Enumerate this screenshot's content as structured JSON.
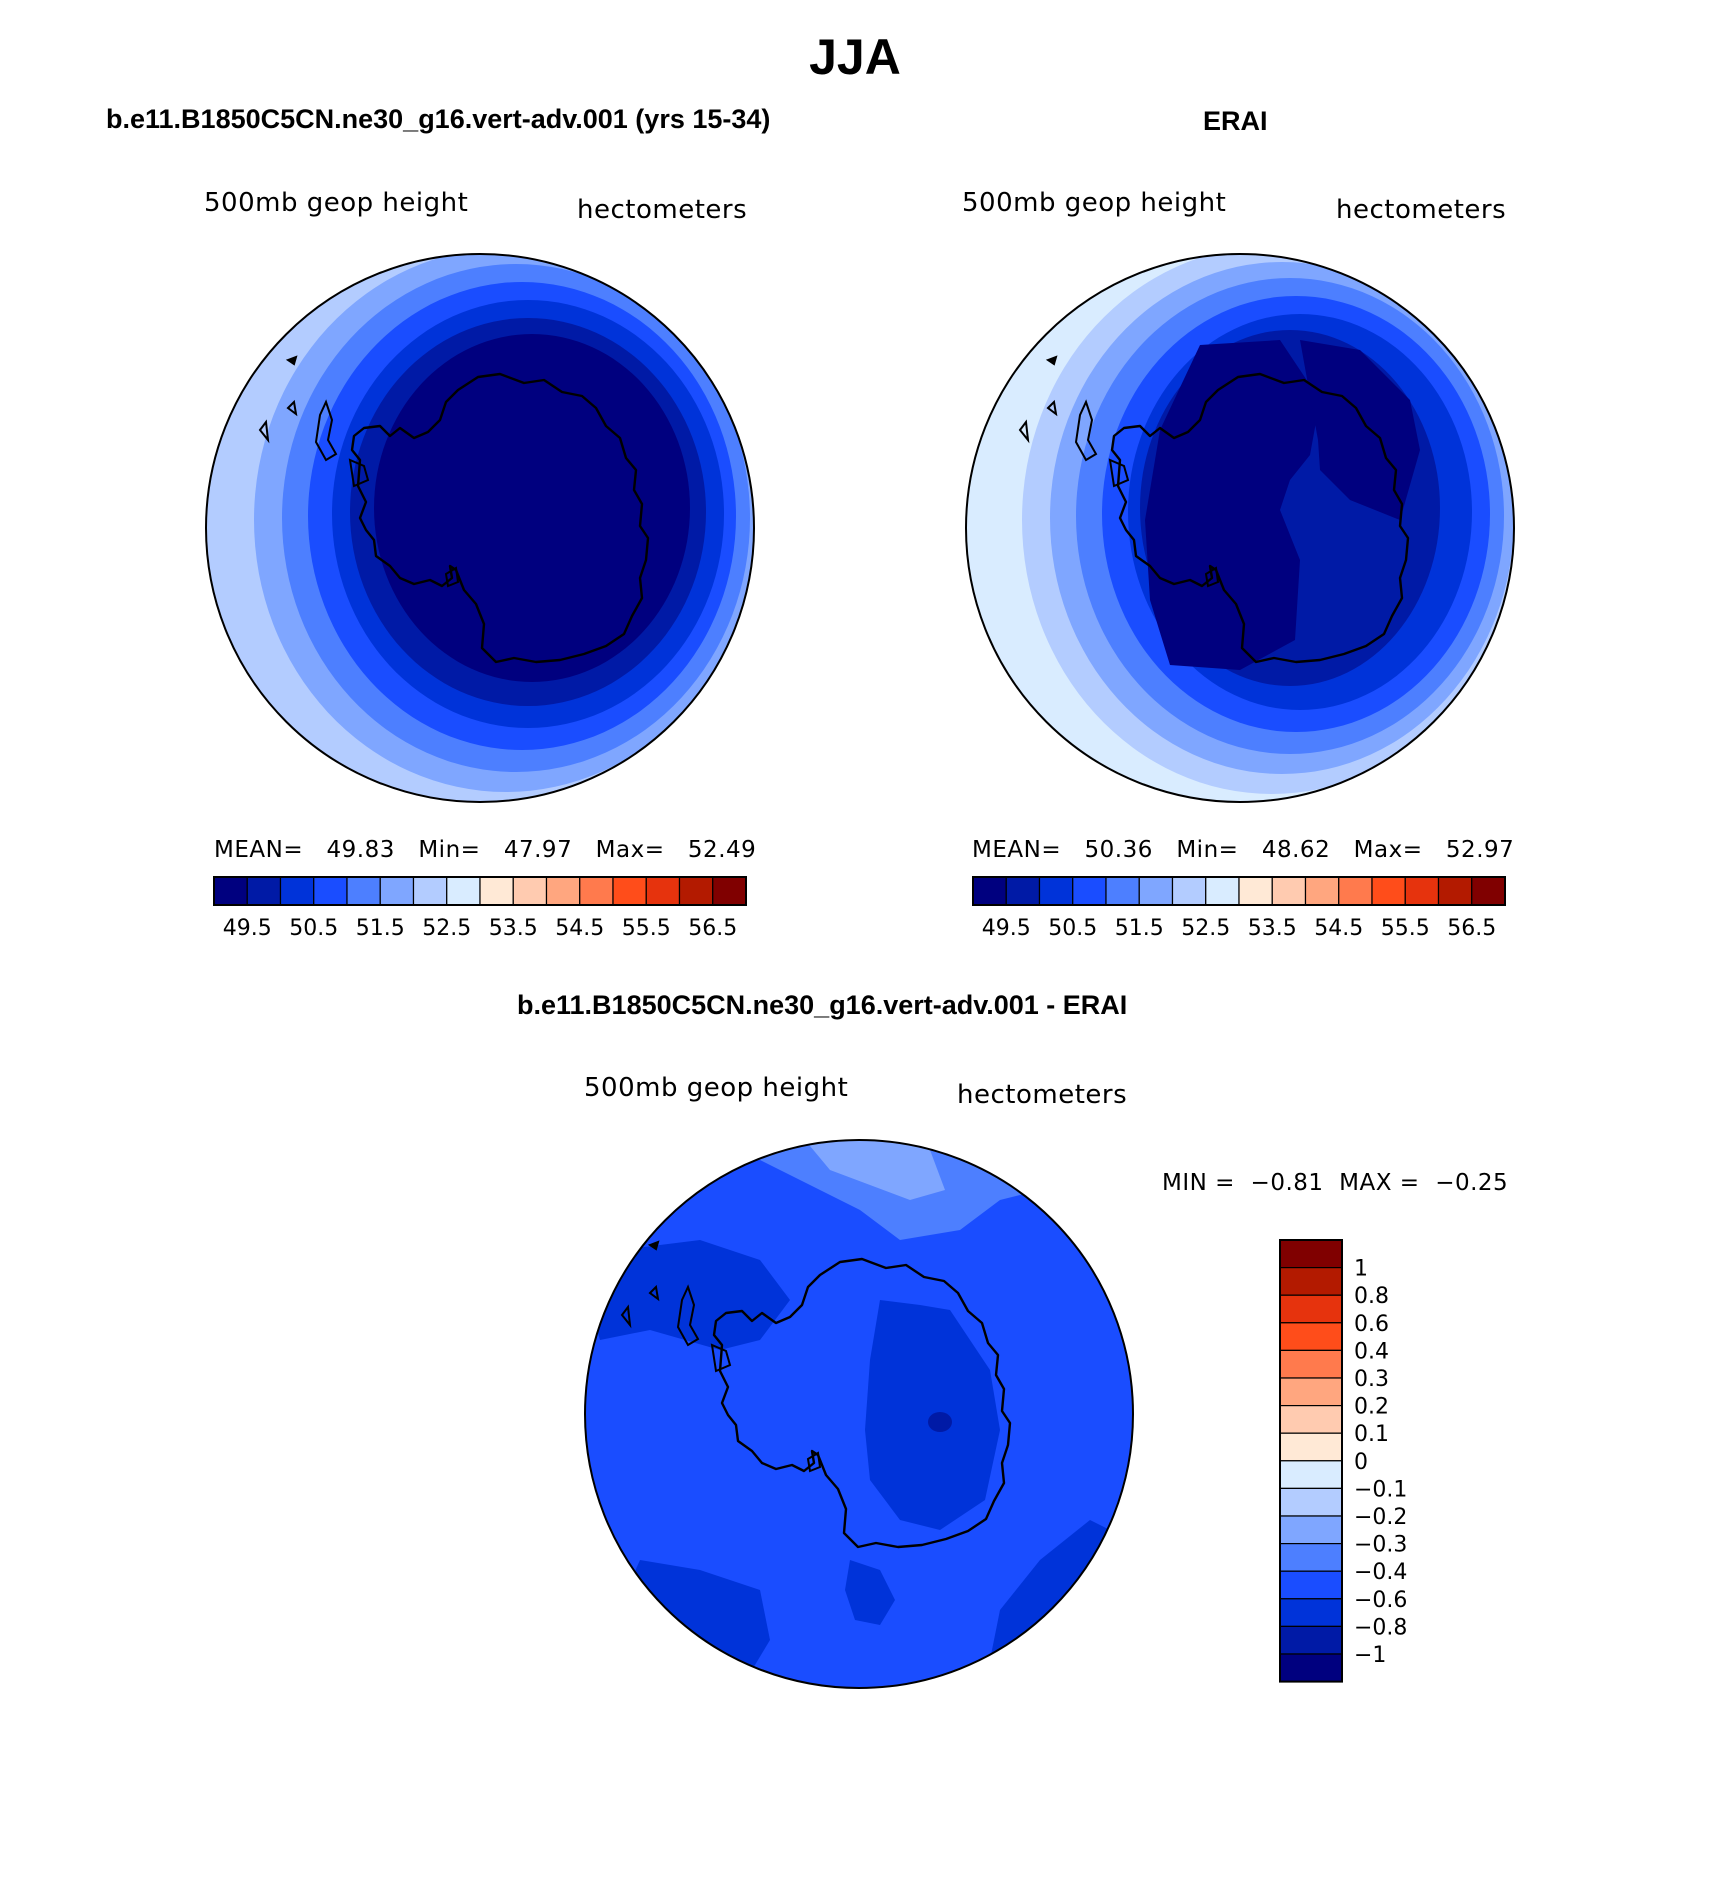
{
  "main_title": "JJA",
  "panels": [
    {
      "title": "b.e11.B1850C5CN.ne30_g16.vert-adv.001 (yrs 15-34)",
      "left_label": "500mb  geop  height",
      "right_label": "hectometers",
      "stats": {
        "mean_label": "MEAN=",
        "mean": "49.83",
        "min_label": "Min=",
        "min": "47.97",
        "max_label": "Max=",
        "max": "52.49"
      }
    },
    {
      "title": "ERAI",
      "left_label": "500mb  geop  height",
      "right_label": "hectometers",
      "stats": {
        "mean_label": "MEAN=",
        "mean": "50.36",
        "min_label": "Min=",
        "min": "48.62",
        "max_label": "Max=",
        "max": "52.97"
      }
    },
    {
      "title": "b.e11.B1850C5CN.ne30_g16.vert-adv.001 - ERAI",
      "left_label": "500mb  geop  height",
      "right_label": "hectometers",
      "stats_text": {
        "min_label": "MIN =",
        "min": "−0.81",
        "max_label": "MAX =",
        "max": "−0.25"
      }
    }
  ],
  "colorbar_abs": {
    "colors": [
      "#00007f",
      "#001aa6",
      "#0033d9",
      "#1a4dff",
      "#4d7fff",
      "#7fa6ff",
      "#b3ccff",
      "#d9ecff",
      "#ffe9d6",
      "#ffcbb0",
      "#ffa67f",
      "#ff7a4d",
      "#ff4d1a",
      "#e6330d",
      "#b31a00",
      "#800000"
    ],
    "tick_labels": [
      "49.5",
      "50.5",
      "51.5",
      "52.5",
      "53.5",
      "54.5",
      "55.5",
      "56.5"
    ]
  },
  "colorbar_diff": {
    "colors_top_to_bottom": [
      "#800000",
      "#b31a00",
      "#e6330d",
      "#ff4d1a",
      "#ff7a4d",
      "#ffa67f",
      "#ffcbb0",
      "#ffe9d6",
      "#d9ecff",
      "#b3ccff",
      "#7fa6ff",
      "#4d7fff",
      "#1a4dff",
      "#0033d9",
      "#001aa6",
      "#00007f"
    ],
    "tick_labels": [
      "1",
      "0.8",
      "0.6",
      "0.4",
      "0.3",
      "0.2",
      "0.1",
      "0",
      "−0.1",
      "−0.2",
      "−0.3",
      "−0.4",
      "−0.6",
      "−0.8",
      "−1"
    ]
  }
}
